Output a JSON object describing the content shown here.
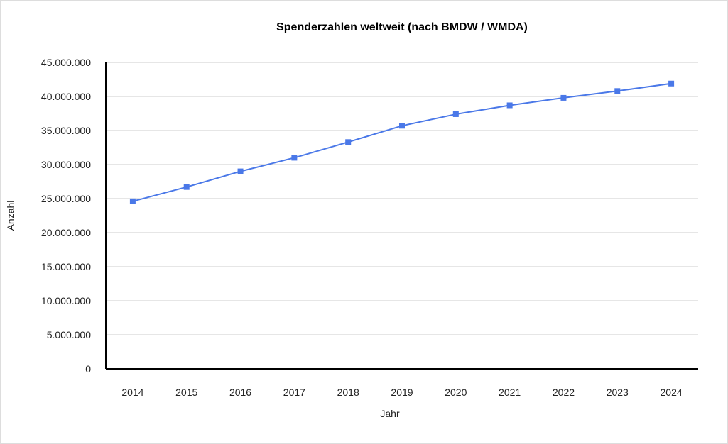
{
  "chart_data": {
    "type": "line",
    "title": "Spenderzahlen weltweit (nach BMDW / WMDA)",
    "xlabel": "Jahr",
    "ylabel": "Anzahl",
    "categories": [
      "2014",
      "2015",
      "2016",
      "2017",
      "2018",
      "2019",
      "2020",
      "2021",
      "2022",
      "2023",
      "2024"
    ],
    "series": [
      {
        "values": [
          24600000,
          26700000,
          29000000,
          31000000,
          33300000,
          35700000,
          37400000,
          38700000,
          39800000,
          40800000,
          41900000
        ]
      }
    ],
    "ylim": [
      0,
      45000000
    ],
    "yticks": [
      0,
      5000000,
      10000000,
      15000000,
      20000000,
      25000000,
      30000000,
      35000000,
      40000000,
      45000000
    ],
    "ytick_labels": [
      "0",
      "5.000.000",
      "10.000.000",
      "15.000.000",
      "20.000.000",
      "25.000.000",
      "30.000.000",
      "35.000.000",
      "40.000.000",
      "45.000.000"
    ],
    "grid": true,
    "legend": "none",
    "line_color": "#4a78e8",
    "grid_color": "#cccccc",
    "axis_color": "#000000"
  }
}
